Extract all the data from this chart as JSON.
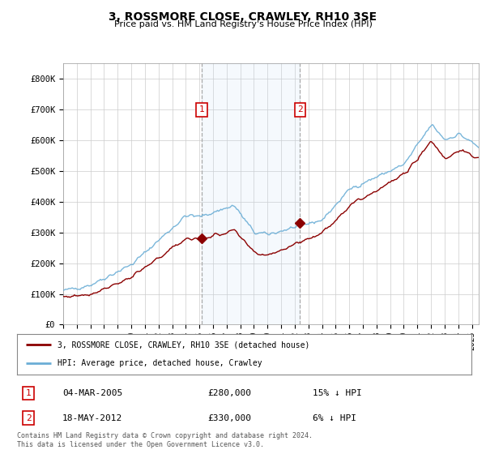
{
  "title": "3, ROSSMORE CLOSE, CRAWLEY, RH10 3SE",
  "subtitle": "Price paid vs. HM Land Registry's House Price Index (HPI)",
  "background_color": "#ffffff",
  "plot_bg_color": "#ffffff",
  "grid_color": "#cccccc",
  "sale1": {
    "date_num": 2005.17,
    "price": 280000,
    "label": "1",
    "date_str": "04-MAR-2005",
    "price_str": "£280,000",
    "hpi_pct": "15% ↓ HPI"
  },
  "sale2": {
    "date_num": 2012.38,
    "price": 330000,
    "label": "2",
    "date_str": "18-MAY-2012",
    "price_str": "£330,000",
    "hpi_pct": "6% ↓ HPI"
  },
  "hpi_color": "#6baed6",
  "price_color": "#8b0000",
  "shade_color": "#ddeeff",
  "ylim": [
    0,
    850000
  ],
  "xlim_start": 1995,
  "xlim_end": 2025.5,
  "legend_label_price": "3, ROSSMORE CLOSE, CRAWLEY, RH10 3SE (detached house)",
  "legend_label_hpi": "HPI: Average price, detached house, Crawley",
  "footer": "Contains HM Land Registry data © Crown copyright and database right 2024.\nThis data is licensed under the Open Government Licence v3.0.",
  "title_fontsize": 10,
  "subtitle_fontsize": 8,
  "tick_fontsize": 7,
  "ytick_labels": [
    "£0",
    "£100K",
    "£200K",
    "£300K",
    "£400K",
    "£500K",
    "£600K",
    "£700K",
    "£800K"
  ],
  "ytick_values": [
    0,
    100000,
    200000,
    300000,
    400000,
    500000,
    600000,
    700000,
    800000
  ]
}
